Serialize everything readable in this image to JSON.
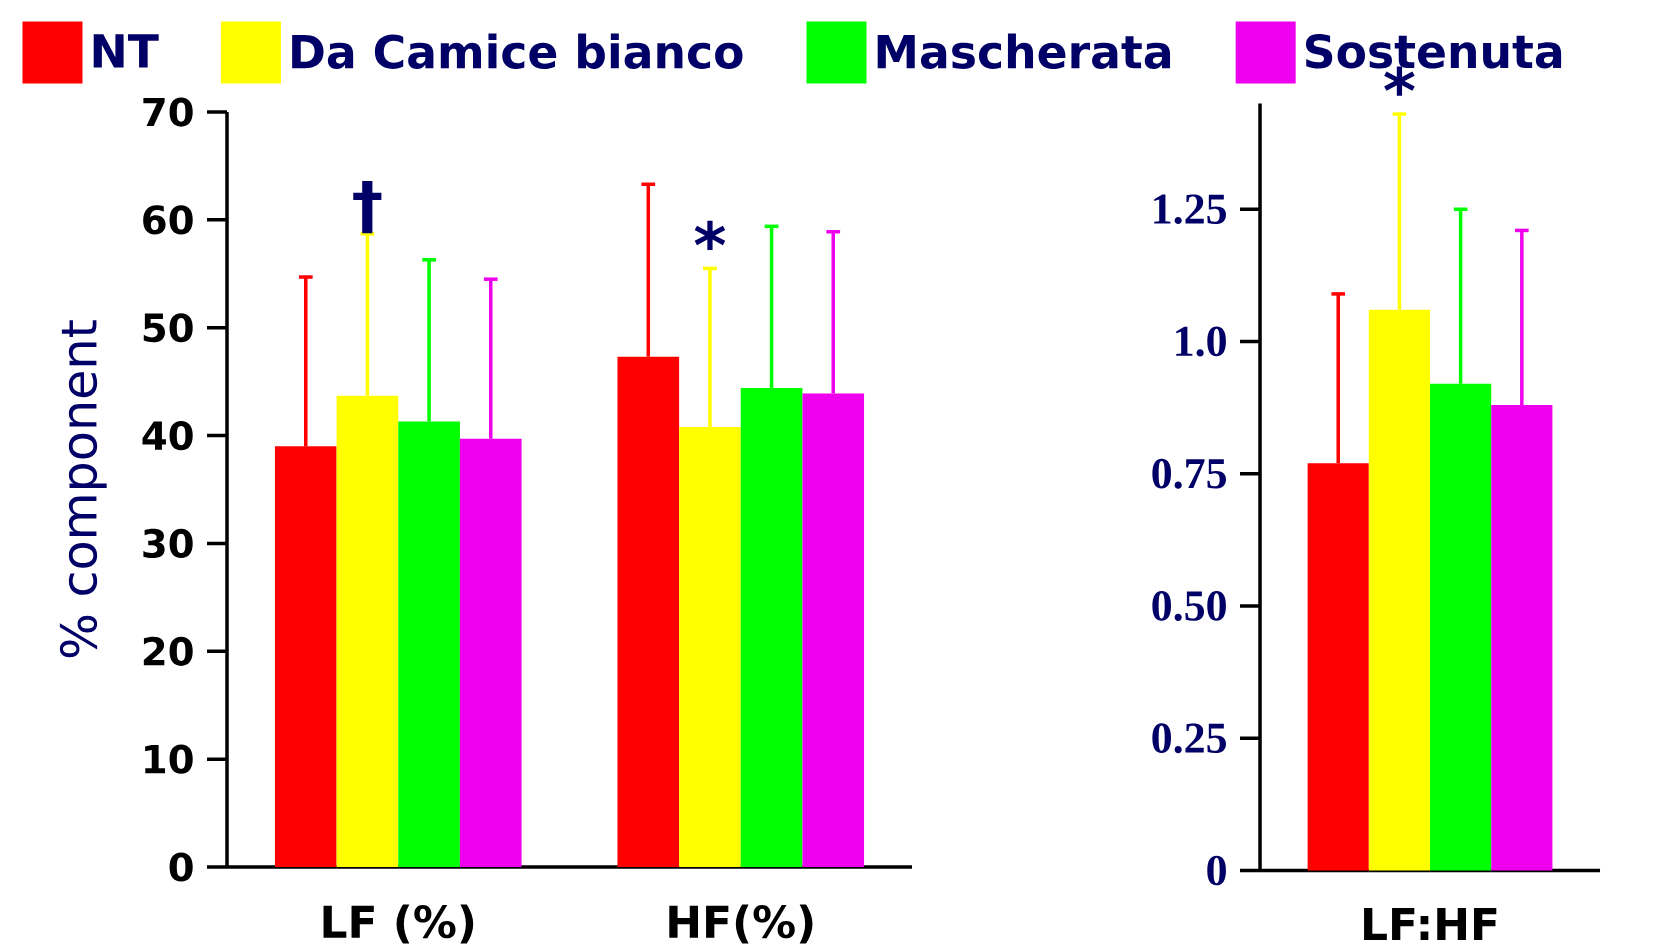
{
  "chart_data": [
    {
      "type": "bar",
      "categories": [
        "LF (%)",
        "HF(%)"
      ],
      "ylabel": "% component",
      "ylim": [
        0,
        70
      ],
      "yticks": [
        0,
        10,
        20,
        30,
        40,
        50,
        60,
        70
      ],
      "legend": "top",
      "grid": false,
      "series": [
        {
          "name": "NT",
          "color": "#ff0000",
          "values": [
            39,
            47.3
          ],
          "errors": [
            [
              39,
              54.7
            ],
            [
              47.3,
              63.3
            ]
          ]
        },
        {
          "name": "Da Camice bianco",
          "color": "#ffff00",
          "values": [
            43.7,
            40.8
          ],
          "errors": [
            [
              43.7,
              58.7
            ],
            [
              40.8,
              55.5
            ]
          ]
        },
        {
          "name": "Mascherata",
          "color": "#00ff00",
          "values": [
            41.3,
            44.4
          ],
          "errors": [
            [
              41.3,
              56.3
            ],
            [
              44.4,
              59.4
            ]
          ]
        },
        {
          "name": "Sostenuta",
          "color": "#ee00ee",
          "values": [
            39.7,
            43.9
          ],
          "errors": [
            [
              39.7,
              54.5
            ],
            [
              43.9,
              58.9
            ]
          ]
        }
      ],
      "annotations": [
        "†",
        "*"
      ]
    },
    {
      "type": "bar",
      "categories": [
        "LF:HF"
      ],
      "ylim": [
        0,
        1.45
      ],
      "yticks": [
        0,
        0.25,
        {
          "value": 0.5,
          "label": "0.50"
        },
        0.75,
        {
          "value": 1,
          "label": "1.0"
        },
        1.25
      ],
      "grid": false,
      "series": [
        {
          "color": "#ff0000",
          "values": [
            0.77
          ],
          "errors": [
            [
              0.77,
              1.09
            ]
          ]
        },
        {
          "color": "#ffff00",
          "values": [
            1.06
          ],
          "errors": [
            [
              1.06,
              1.43
            ]
          ]
        },
        {
          "color": "#00ff00",
          "values": [
            0.92
          ],
          "errors": [
            [
              0.92,
              1.25
            ]
          ]
        },
        {
          "color": "#ee00ee",
          "values": [
            0.88
          ],
          "errors": [
            [
              0.88,
              1.21
            ]
          ]
        }
      ],
      "annotations": [
        "*"
      ]
    }
  ]
}
